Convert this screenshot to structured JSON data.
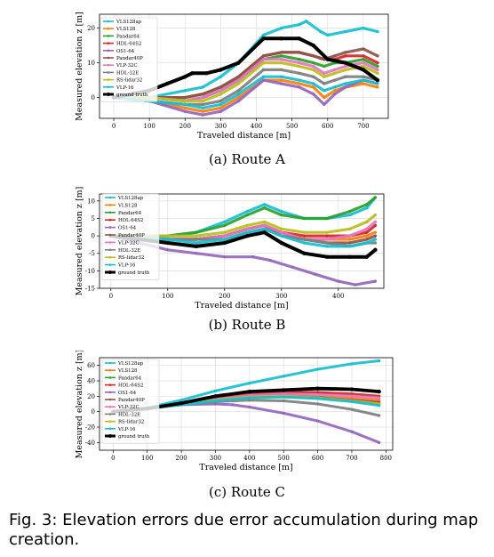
{
  "figure": {
    "caption": "Fig. 3: Elevation errors due error accumulation during map creation."
  },
  "chart_data": [
    {
      "type": "line",
      "subcaption": "(a) Route A",
      "xlabel": "Traveled distance [m]",
      "ylabel": "Measured elevation z [m]",
      "xlim": [
        -40,
        770
      ],
      "ylim": [
        -6,
        24
      ],
      "xticks": [
        0,
        100,
        200,
        300,
        400,
        500,
        600,
        700
      ],
      "yticks": [
        0,
        10,
        20
      ],
      "grid": true,
      "legend_position": "top-left",
      "series": [
        {
          "name": "VLS128ap",
          "color": "#17becf",
          "x": [
            0,
            100,
            200,
            250,
            300,
            350,
            420,
            470,
            520,
            540,
            580,
            600,
            650,
            700,
            740
          ],
          "y": [
            0,
            0,
            2,
            3,
            6,
            10,
            18,
            20,
            21,
            22,
            19,
            18,
            19,
            20,
            19
          ]
        },
        {
          "name": "VLS128",
          "color": "#ff7f0e",
          "x": [
            0,
            100,
            200,
            250,
            300,
            350,
            420,
            470,
            520,
            560,
            590,
            620,
            650,
            700,
            740
          ],
          "y": [
            0,
            -1,
            -3,
            -4,
            -3,
            0,
            5,
            5,
            4,
            3,
            0,
            2,
            3,
            4,
            3
          ]
        },
        {
          "name": "Pandar64",
          "color": "#2ca02c",
          "x": [
            0,
            100,
            200,
            250,
            300,
            350,
            420,
            470,
            520,
            560,
            590,
            620,
            650,
            700,
            740
          ],
          "y": [
            0,
            0,
            -1,
            0,
            2,
            5,
            11,
            12,
            11,
            10,
            9,
            10,
            10,
            11,
            9
          ]
        },
        {
          "name": "HDL-64S2",
          "color": "#d62728",
          "x": [
            0,
            100,
            200,
            250,
            300,
            350,
            420,
            470,
            520,
            560,
            590,
            620,
            650,
            700,
            740
          ],
          "y": [
            0,
            0,
            0,
            1,
            3,
            6,
            12,
            13,
            13,
            12,
            11,
            11,
            12,
            12,
            10
          ]
        },
        {
          "name": "OS1-64",
          "color": "#9467bd",
          "x": [
            0,
            100,
            200,
            250,
            300,
            350,
            420,
            470,
            520,
            560,
            590,
            620,
            650,
            700,
            740
          ],
          "y": [
            0,
            -1,
            -4,
            -5,
            -4,
            -1,
            5,
            4,
            3,
            1,
            -2,
            1,
            3,
            5,
            4
          ]
        },
        {
          "name": "Pandar40P",
          "color": "#8c564b",
          "x": [
            0,
            100,
            200,
            250,
            300,
            350,
            420,
            470,
            520,
            560,
            590,
            620,
            650,
            700,
            740
          ],
          "y": [
            0,
            0,
            0,
            1,
            3,
            6,
            12,
            13,
            13,
            12,
            11,
            12,
            13,
            14,
            12
          ]
        },
        {
          "name": "VLP-32C",
          "color": "#e377c2",
          "x": [
            0,
            100,
            200,
            250,
            300,
            350,
            420,
            470,
            520,
            560,
            590,
            620,
            650,
            700,
            740
          ],
          "y": [
            0,
            0,
            -1,
            0,
            2,
            5,
            11,
            11,
            10,
            9,
            7,
            8,
            9,
            10,
            8
          ]
        },
        {
          "name": "HDL-32E",
          "color": "#7f7f7f",
          "x": [
            0,
            100,
            200,
            250,
            300,
            350,
            420,
            470,
            520,
            560,
            590,
            620,
            650,
            700,
            740
          ],
          "y": [
            0,
            -1,
            -2,
            -2,
            -1,
            2,
            8,
            8,
            7,
            6,
            4,
            5,
            6,
            6,
            5
          ]
        },
        {
          "name": "RS-lidar32",
          "color": "#bcbd22",
          "x": [
            0,
            100,
            200,
            250,
            300,
            350,
            420,
            470,
            520,
            560,
            590,
            620,
            650,
            700,
            740
          ],
          "y": [
            0,
            0,
            -1,
            -1,
            1,
            4,
            10,
            10,
            9,
            8,
            6,
            7,
            8,
            9,
            7
          ]
        },
        {
          "name": "VLP-16",
          "color": "#17becf",
          "x": [
            0,
            100,
            200,
            250,
            300,
            350,
            420,
            470,
            520,
            560,
            590,
            620,
            650,
            700,
            740
          ],
          "y": [
            0,
            -1,
            -2,
            -3,
            -2,
            1,
            6,
            6,
            5,
            4,
            2,
            3,
            4,
            5,
            4
          ]
        },
        {
          "name": "ground truth",
          "color": "#000000",
          "x": [
            0,
            100,
            150,
            200,
            220,
            260,
            300,
            350,
            420,
            470,
            520,
            560,
            600,
            650,
            700,
            740
          ],
          "y": [
            0,
            2,
            4,
            6,
            7,
            7,
            8,
            10,
            17,
            17,
            17,
            15,
            11,
            10,
            8,
            5
          ]
        }
      ]
    },
    {
      "type": "line",
      "subcaption": "(b) Route B",
      "xlabel": "Traveled distance [m]",
      "ylabel": "Measured elevation z [m]",
      "xlim": [
        -20,
        480
      ],
      "ylim": [
        -15,
        12
      ],
      "xticks": [
        0,
        100,
        200,
        300,
        400
      ],
      "yticks": [
        -15,
        -10,
        -5,
        0,
        5,
        10
      ],
      "grid": true,
      "legend_position": "top-left",
      "series": [
        {
          "name": "VLS128ap",
          "color": "#17becf",
          "x": [
            0,
            100,
            150,
            200,
            240,
            270,
            300,
            340,
            380,
            420,
            450,
            465
          ],
          "y": [
            0,
            0,
            1,
            4,
            7,
            9,
            7,
            5,
            5,
            6,
            8,
            11
          ]
        },
        {
          "name": "VLS128",
          "color": "#ff7f0e",
          "x": [
            0,
            100,
            150,
            200,
            240,
            270,
            300,
            340,
            380,
            420,
            450,
            465
          ],
          "y": [
            0,
            -1,
            -1,
            0,
            2,
            3,
            1,
            -1,
            -1,
            -1,
            0,
            1
          ]
        },
        {
          "name": "Pandar64",
          "color": "#2ca02c",
          "x": [
            0,
            100,
            150,
            200,
            240,
            270,
            300,
            340,
            380,
            420,
            450,
            465
          ],
          "y": [
            0,
            0,
            1,
            3,
            6,
            8,
            6,
            5,
            5,
            7,
            9,
            11
          ]
        },
        {
          "name": "HDL-64S2",
          "color": "#d62728",
          "x": [
            0,
            100,
            150,
            200,
            240,
            270,
            300,
            340,
            380,
            420,
            450,
            465
          ],
          "y": [
            0,
            -1,
            -1,
            0,
            2,
            3,
            1,
            0,
            0,
            0,
            1,
            3
          ]
        },
        {
          "name": "OS1-64",
          "color": "#9467bd",
          "x": [
            0,
            50,
            100,
            150,
            200,
            250,
            280,
            320,
            360,
            400,
            430,
            465
          ],
          "y": [
            0,
            -2,
            -4,
            -5,
            -6,
            -6,
            -7,
            -9,
            -11,
            -13,
            -14,
            -13
          ]
        },
        {
          "name": "Pandar40P",
          "color": "#8c564b",
          "x": [
            0,
            100,
            150,
            200,
            240,
            270,
            300,
            340,
            380,
            420,
            450,
            465
          ],
          "y": [
            0,
            -1,
            -1,
            0,
            2,
            3,
            0,
            -1,
            -2,
            -2,
            -1,
            0
          ]
        },
        {
          "name": "VLP-32C",
          "color": "#e377c2",
          "x": [
            0,
            100,
            150,
            200,
            240,
            270,
            300,
            340,
            380,
            420,
            450,
            465
          ],
          "y": [
            0,
            -1,
            -1,
            0,
            2,
            3,
            1,
            -1,
            -1,
            0,
            2,
            4
          ]
        },
        {
          "name": "HDL-32E",
          "color": "#7f7f7f",
          "x": [
            0,
            100,
            150,
            200,
            240,
            270,
            300,
            340,
            380,
            420,
            450,
            465
          ],
          "y": [
            0,
            -1,
            -1,
            -1,
            1,
            2,
            0,
            -1,
            -2,
            -3,
            -2,
            -2
          ]
        },
        {
          "name": "RS-lidar32",
          "color": "#bcbd22",
          "x": [
            0,
            100,
            150,
            200,
            240,
            270,
            300,
            340,
            380,
            420,
            450,
            465
          ],
          "y": [
            0,
            0,
            0,
            1,
            3,
            4,
            2,
            1,
            1,
            2,
            4,
            6
          ]
        },
        {
          "name": "VLP-16",
          "color": "#17becf",
          "x": [
            0,
            100,
            150,
            200,
            240,
            270,
            300,
            340,
            380,
            420,
            450,
            465
          ],
          "y": [
            0,
            -1,
            -2,
            -1,
            1,
            2,
            0,
            -2,
            -3,
            -3,
            -2,
            -1
          ]
        },
        {
          "name": "ground truth",
          "color": "#000000",
          "x": [
            0,
            50,
            100,
            150,
            200,
            240,
            270,
            300,
            340,
            380,
            420,
            450,
            465
          ],
          "y": [
            0,
            -1,
            -2,
            -3,
            -2,
            0,
            1,
            -2,
            -5,
            -6,
            -6,
            -6,
            -4
          ]
        }
      ]
    },
    {
      "type": "line",
      "subcaption": "(c) Route C",
      "xlabel": "Traveled distance [m]",
      "ylabel": "Measured elevation z [m]",
      "xlim": [
        -40,
        820
      ],
      "ylim": [
        -50,
        70
      ],
      "xticks": [
        0,
        100,
        200,
        300,
        400,
        500,
        600,
        700,
        800
      ],
      "yticks": [
        -40,
        -20,
        0,
        20,
        40,
        60
      ],
      "grid": true,
      "legend_position": "top-left",
      "series": [
        {
          "name": "VLS128ap",
          "color": "#17becf",
          "x": [
            0,
            100,
            200,
            300,
            400,
            500,
            600,
            700,
            780
          ],
          "y": [
            0,
            5,
            15,
            27,
            37,
            46,
            55,
            62,
            66
          ]
        },
        {
          "name": "VLS128",
          "color": "#ff7f0e",
          "x": [
            0,
            100,
            200,
            300,
            400,
            500,
            600,
            700,
            780
          ],
          "y": [
            0,
            4,
            10,
            16,
            20,
            21,
            20,
            18,
            15
          ]
        },
        {
          "name": "Pandar64",
          "color": "#2ca02c",
          "x": [
            0,
            100,
            200,
            300,
            400,
            500,
            600,
            700,
            780
          ],
          "y": [
            0,
            4,
            10,
            16,
            20,
            22,
            19,
            14,
            10
          ]
        },
        {
          "name": "HDL-64S2",
          "color": "#d62728",
          "x": [
            0,
            100,
            200,
            300,
            400,
            500,
            600,
            700,
            780
          ],
          "y": [
            0,
            4,
            11,
            17,
            22,
            25,
            25,
            23,
            20
          ]
        },
        {
          "name": "OS1-64",
          "color": "#9467bd",
          "x": [
            0,
            100,
            200,
            300,
            350,
            400,
            500,
            600,
            700,
            780
          ],
          "y": [
            0,
            4,
            9,
            10,
            9,
            6,
            -2,
            -12,
            -26,
            -40
          ]
        },
        {
          "name": "Pandar40P",
          "color": "#8c564b",
          "x": [
            0,
            100,
            200,
            300,
            400,
            500,
            600,
            700,
            780
          ],
          "y": [
            0,
            4,
            10,
            15,
            19,
            20,
            18,
            15,
            12
          ]
        },
        {
          "name": "VLP-32C",
          "color": "#e377c2",
          "x": [
            0,
            100,
            200,
            300,
            400,
            500,
            600,
            700,
            780
          ],
          "y": [
            0,
            4,
            10,
            16,
            21,
            23,
            22,
            20,
            18
          ]
        },
        {
          "name": "HDL-32E",
          "color": "#7f7f7f",
          "x": [
            0,
            100,
            200,
            300,
            400,
            500,
            600,
            700,
            780
          ],
          "y": [
            0,
            4,
            9,
            13,
            15,
            14,
            10,
            3,
            -5
          ]
        },
        {
          "name": "RS-lidar32",
          "color": "#bcbd22",
          "x": [
            0,
            100,
            200,
            300,
            400,
            500,
            600,
            700,
            780
          ],
          "y": [
            0,
            4,
            10,
            15,
            19,
            20,
            18,
            14,
            10
          ]
        },
        {
          "name": "VLP-16",
          "color": "#17becf",
          "x": [
            0,
            100,
            200,
            300,
            400,
            500,
            600,
            700,
            780
          ],
          "y": [
            0,
            4,
            9,
            14,
            18,
            19,
            17,
            13,
            8
          ]
        },
        {
          "name": "ground truth",
          "color": "#000000",
          "x": [
            0,
            100,
            200,
            300,
            400,
            500,
            600,
            700,
            780
          ],
          "y": [
            0,
            4,
            11,
            20,
            26,
            28,
            30,
            29,
            26
          ]
        }
      ]
    }
  ]
}
